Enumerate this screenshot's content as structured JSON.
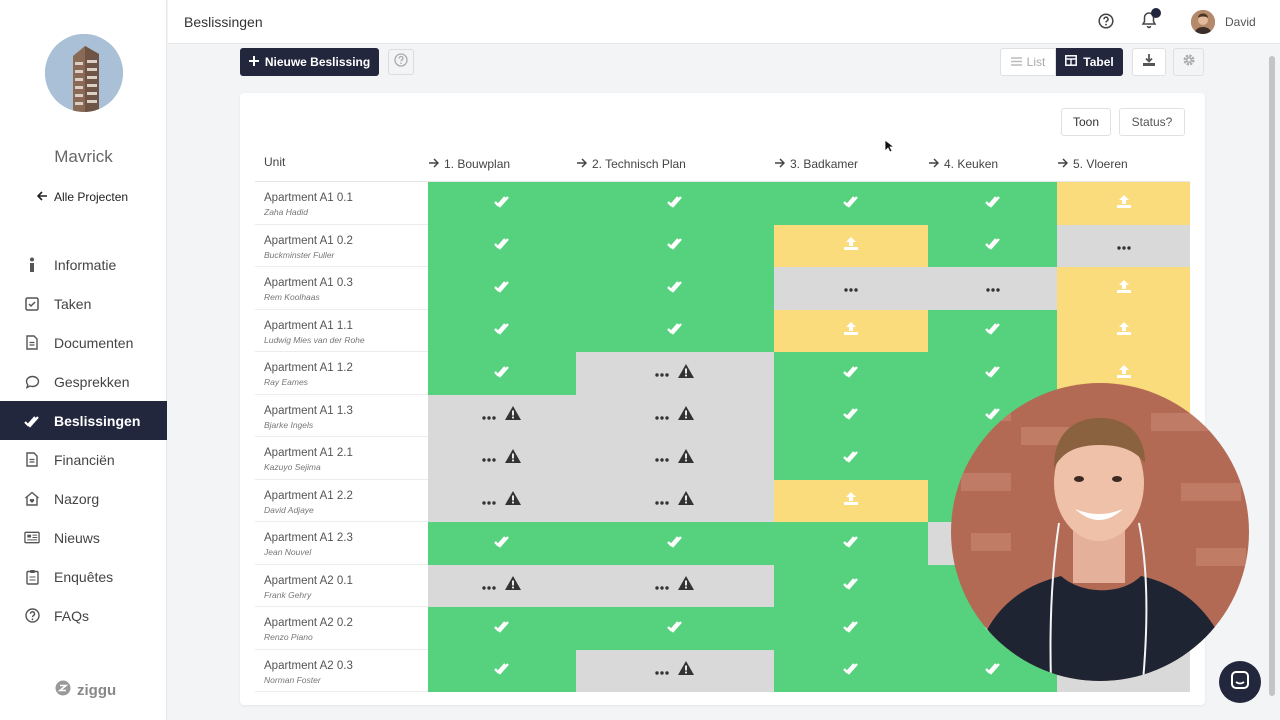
{
  "sidebar": {
    "project_name": "Mavrick",
    "back_link": "Alle Projecten",
    "items": [
      {
        "label": "Informatie",
        "icon": "info-icon"
      },
      {
        "label": "Taken",
        "icon": "checkbox-icon"
      },
      {
        "label": "Documenten",
        "icon": "document-icon"
      },
      {
        "label": "Gesprekken",
        "icon": "chat-bubble-icon"
      },
      {
        "label": "Beslissingen",
        "icon": "double-check-icon",
        "active": true
      },
      {
        "label": "Financiën",
        "icon": "document-icon"
      },
      {
        "label": "Nazorg",
        "icon": "home-heart-icon"
      },
      {
        "label": "Nieuws",
        "icon": "newspaper-icon"
      },
      {
        "label": "Enquêtes",
        "icon": "clipboard-icon"
      },
      {
        "label": "FAQs",
        "icon": "question-circle-icon"
      }
    ],
    "brand": "ziggu"
  },
  "header": {
    "title": "Beslissingen",
    "user_name": "David"
  },
  "toolbar": {
    "new_button": "Nieuwe Beslissing",
    "view_list": "List",
    "view_table": "Tabel"
  },
  "table": {
    "buttons": {
      "toon": "Toon",
      "status": "Status?"
    },
    "columns": {
      "unit": "Unit",
      "c1": "1. Bouwplan",
      "c2": "2. Technisch Plan",
      "c3": "3. Badkamer",
      "c4": "4. Keuken",
      "c5": "5. Vloeren"
    },
    "rows": [
      {
        "unit": "Apartment A1 0.1",
        "architect": "Zaha Hadid",
        "status": [
          "done",
          "done",
          "done",
          "done",
          "upload"
        ]
      },
      {
        "unit": "Apartment A1 0.2",
        "architect": "Buckminster Fuller",
        "status": [
          "done",
          "done",
          "upload",
          "done",
          "pending"
        ]
      },
      {
        "unit": "Apartment A1 0.3",
        "architect": "Rem Koolhaas",
        "status": [
          "done",
          "done",
          "pending",
          "pending",
          "upload"
        ]
      },
      {
        "unit": "Apartment A1 1.1",
        "architect": "Ludwig Mies van der Rohe",
        "status": [
          "done",
          "done",
          "upload",
          "done",
          "upload"
        ]
      },
      {
        "unit": "Apartment A1 1.2",
        "architect": "Ray Eames",
        "status": [
          "done",
          "warning",
          "done",
          "done",
          "upload"
        ]
      },
      {
        "unit": "Apartment A1 1.3",
        "architect": "Bjarke Ingels",
        "status": [
          "warning",
          "warning",
          "done",
          "done",
          "upload"
        ]
      },
      {
        "unit": "Apartment A1 2.1",
        "architect": "Kazuyo Sejima",
        "status": [
          "warning",
          "warning",
          "done",
          "done",
          "upload"
        ]
      },
      {
        "unit": "Apartment A1 2.2",
        "architect": "David Adjaye",
        "status": [
          "warning",
          "warning",
          "upload",
          "done",
          "upload"
        ]
      },
      {
        "unit": "Apartment A1 2.3",
        "architect": "Jean Nouvel",
        "status": [
          "done",
          "done",
          "done",
          "pending",
          "upload"
        ]
      },
      {
        "unit": "Apartment A2 0.1",
        "architect": "Frank Gehry",
        "status": [
          "warning",
          "warning",
          "done",
          "done",
          "upload"
        ]
      },
      {
        "unit": "Apartment A2 0.2",
        "architect": "Renzo Piano",
        "status": [
          "done",
          "done",
          "done",
          "done",
          "upload"
        ]
      },
      {
        "unit": "Apartment A2 0.3",
        "architect": "Norman Foster",
        "status": [
          "done",
          "warning",
          "done",
          "done",
          "pending"
        ]
      }
    ]
  },
  "colors": {
    "done": "#56d17d",
    "upload": "#fadc7c",
    "pending": "#d9d9d9",
    "primary": "#22273d"
  }
}
